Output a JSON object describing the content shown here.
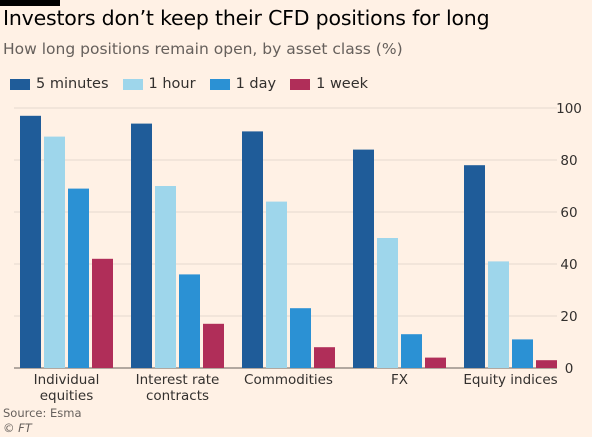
{
  "title": "Investors don’t keep their CFD positions for long",
  "subtitle": "How long positions remain open, by asset class (%)",
  "source": "Source: Esma",
  "credit": "© FT",
  "chart_data": {
    "type": "bar",
    "categories": [
      [
        "Individual",
        "equities"
      ],
      [
        "Interest rate",
        "contracts"
      ],
      [
        "Commodities"
      ],
      [
        "FX"
      ],
      [
        "Equity indices"
      ]
    ],
    "series": [
      {
        "name": "5 minutes",
        "color": "#1f5c99",
        "values": [
          97,
          94,
          91,
          84,
          78
        ]
      },
      {
        "name": "1 hour",
        "color": "#9ed6eb",
        "values": [
          89,
          70,
          64,
          50,
          41
        ]
      },
      {
        "name": "1 day",
        "color": "#2b91d4",
        "values": [
          69,
          36,
          23,
          13,
          11
        ]
      },
      {
        "name": "1 week",
        "color": "#b02e59",
        "values": [
          42,
          17,
          8,
          4,
          3
        ]
      }
    ],
    "ylim": [
      0,
      100
    ],
    "yticks": [
      0,
      20,
      40,
      60,
      80,
      100
    ],
    "y_axis_side": "right",
    "grid": true,
    "legend": "top-left"
  }
}
